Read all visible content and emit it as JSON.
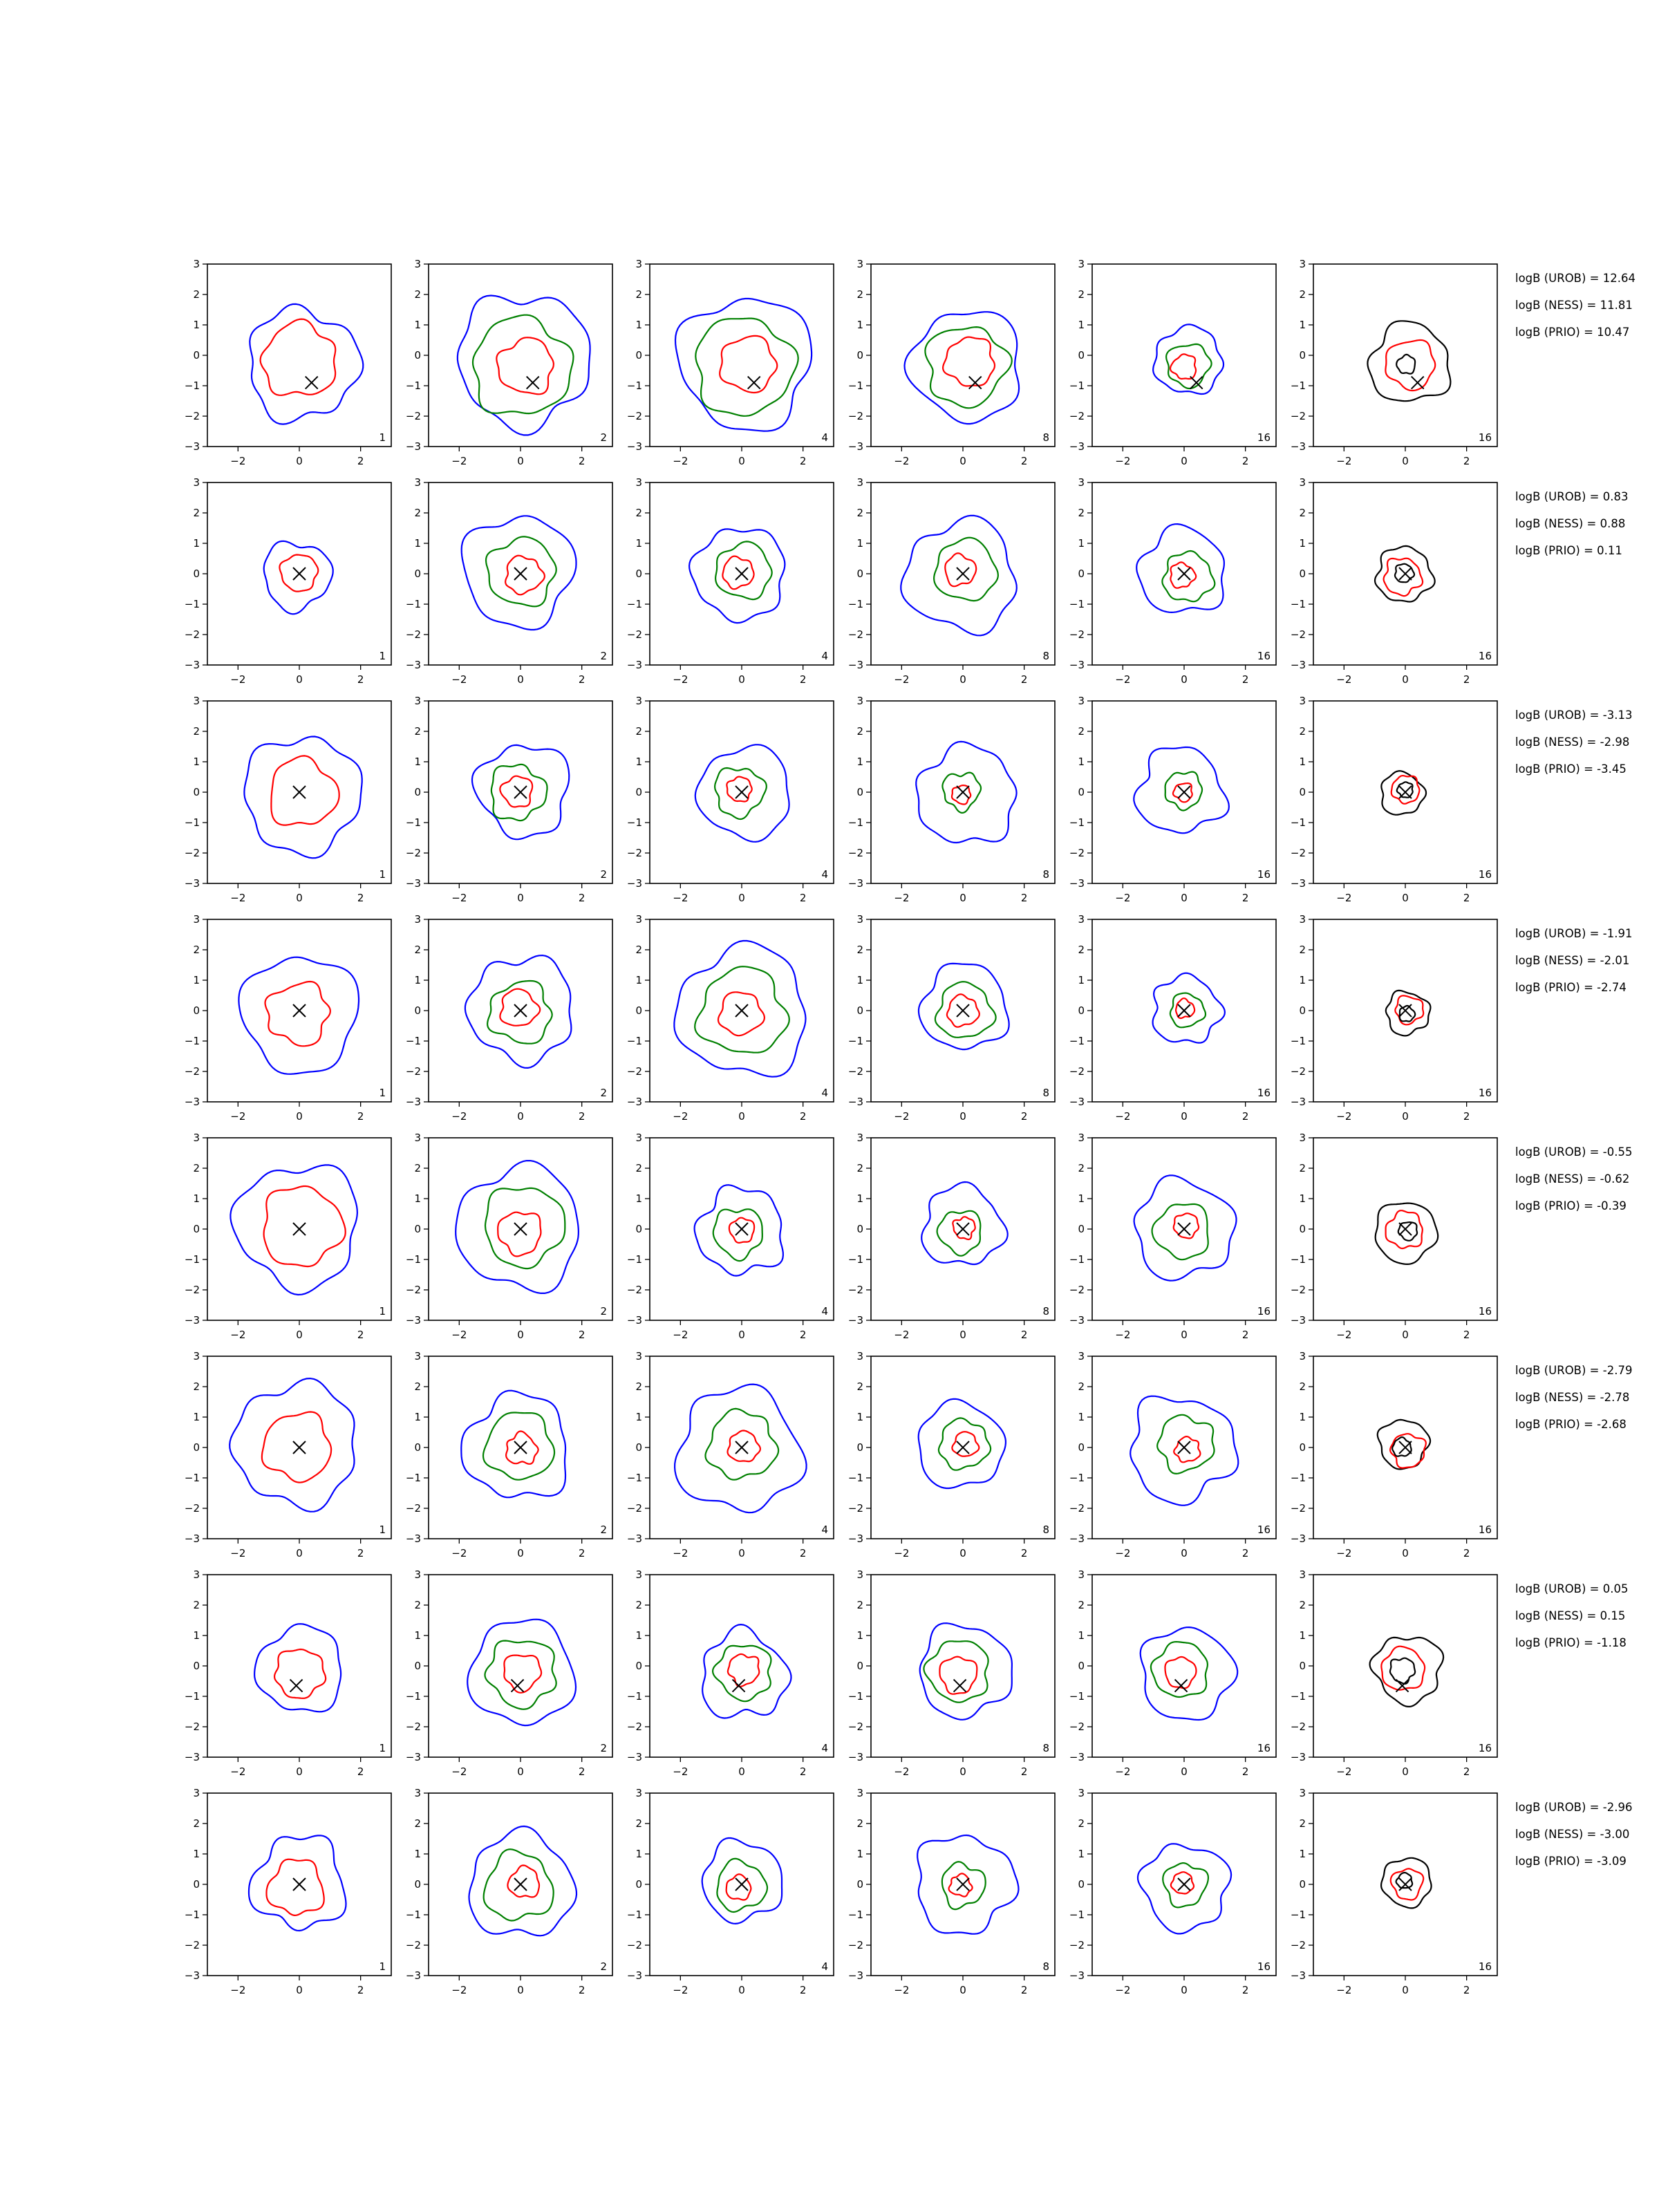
{
  "chart_data": {
    "type": "contour-grid",
    "rows": 8,
    "columns": 6,
    "xlim": [
      -3,
      3
    ],
    "ylim": [
      -3,
      3
    ],
    "xticks": [
      -2,
      0,
      2
    ],
    "yticks": [
      -3,
      -2,
      -1,
      0,
      1,
      2,
      3
    ],
    "xtick_labels": [
      "−2",
      "0",
      "2"
    ],
    "ytick_labels": [
      "−3",
      "−2",
      "−1",
      "0",
      "1",
      "2",
      "3"
    ],
    "column_labels": [
      "1",
      "2",
      "4",
      "8",
      "16",
      "16"
    ],
    "colors": {
      "blue": "#0000ff",
      "red": "#ff0000",
      "green": "#008000",
      "black": "#000000"
    },
    "column_series_colors": [
      [
        "blue",
        "red"
      ],
      [
        "blue",
        "green",
        "red"
      ],
      [
        "blue",
        "green",
        "red"
      ],
      [
        "blue",
        "green",
        "red"
      ],
      [
        "blue",
        "green",
        "red"
      ],
      [
        "black",
        "red"
      ]
    ],
    "truth_markers": [
      [
        0.4,
        -0.9
      ],
      [
        0.0,
        0.0
      ],
      [
        0.0,
        0.0
      ],
      [
        0.0,
        0.0
      ],
      [
        0.0,
        0.0
      ],
      [
        0.0,
        0.0
      ],
      [
        -0.1,
        -0.65
      ],
      [
        0.0,
        0.0
      ]
    ],
    "contour_radii": [
      [
        [
          1.8,
          1.2
        ],
        [
          2.15,
          1.6,
          0.9
        ],
        [
          2.15,
          1.6,
          0.9
        ],
        [
          1.8,
          1.3,
          0.8
        ],
        [
          1.1,
          0.7,
          0.4
        ],
        [
          1.3,
          0.8,
          0.3
        ]
      ],
      [
        [
          1.1,
          0.6
        ],
        [
          1.8,
          1.1,
          0.6
        ],
        [
          1.5,
          0.9,
          0.5
        ],
        [
          1.8,
          1.0,
          0.5
        ],
        [
          1.4,
          0.8,
          0.4
        ],
        [
          0.9,
          0.6,
          0.3
        ]
      ],
      [
        [
          1.9,
          1.1
        ],
        [
          1.5,
          0.9,
          0.5
        ],
        [
          1.5,
          0.8,
          0.4
        ],
        [
          1.6,
          0.6,
          0.3
        ],
        [
          1.4,
          0.6,
          0.3
        ],
        [
          0.7,
          0.45,
          0.25
        ]
      ],
      [
        [
          1.9,
          1.0
        ],
        [
          1.7,
          1.0,
          0.6
        ],
        [
          2.1,
          1.4,
          0.7
        ],
        [
          1.4,
          0.9,
          0.5
        ],
        [
          1.1,
          0.55,
          0.3
        ],
        [
          0.7,
          0.45,
          0.25
        ]
      ],
      [
        [
          2.0,
          1.3
        ],
        [
          2.0,
          1.3,
          0.7
        ],
        [
          1.4,
          0.8,
          0.4
        ],
        [
          1.3,
          0.7,
          0.35
        ],
        [
          1.6,
          0.9,
          0.4
        ],
        [
          1.0,
          0.6,
          0.3
        ]
      ],
      [
        [
          2.0,
          1.1
        ],
        [
          1.7,
          1.1,
          0.5
        ],
        [
          2.0,
          1.1,
          0.5
        ],
        [
          1.4,
          0.8,
          0.4
        ],
        [
          1.7,
          0.9,
          0.4
        ],
        [
          0.8,
          0.55,
          0.3
        ]
      ],
      [
        [
          1.4,
          0.8
        ],
        [
          1.7,
          1.1,
          0.6
        ],
        [
          1.4,
          0.9,
          0.5
        ],
        [
          1.5,
          1.0,
          0.6
        ],
        [
          1.5,
          0.9,
          0.5
        ],
        [
          1.1,
          0.7,
          0.4
        ]
      ],
      [
        [
          1.5,
          0.9
        ],
        [
          1.7,
          1.1,
          0.5
        ],
        [
          1.3,
          0.8,
          0.4
        ],
        [
          1.6,
          0.7,
          0.35
        ],
        [
          1.4,
          0.7,
          0.35
        ],
        [
          0.8,
          0.5,
          0.25
        ]
      ]
    ],
    "annotations": [
      [
        "logB (UROB) = 12.64",
        "logB (NESS) = 11.81",
        "logB (PRIO) = 10.47"
      ],
      [
        "logB (UROB) = 0.83",
        "logB (NESS) = 0.88",
        "logB (PRIO) = 0.11"
      ],
      [
        "logB (UROB) = -3.13",
        "logB (NESS) = -2.98",
        "logB (PRIO) = -3.45"
      ],
      [
        "logB (UROB) = -1.91",
        "logB (NESS) = -2.01",
        "logB (PRIO) = -2.74"
      ],
      [
        "logB (UROB) = -0.55",
        "logB (NESS) = -0.62",
        "logB (PRIO) = -0.39"
      ],
      [
        "logB (UROB) = -2.79",
        "logB (NESS) = -2.78",
        "logB (PRIO) = -2.68"
      ],
      [
        "logB (UROB) = 0.05",
        "logB (NESS) = 0.15",
        "logB (PRIO) = -1.18"
      ],
      [
        "logB (UROB) = -2.96",
        "logB (NESS) = -3.00",
        "logB (PRIO) = -3.09"
      ]
    ]
  }
}
